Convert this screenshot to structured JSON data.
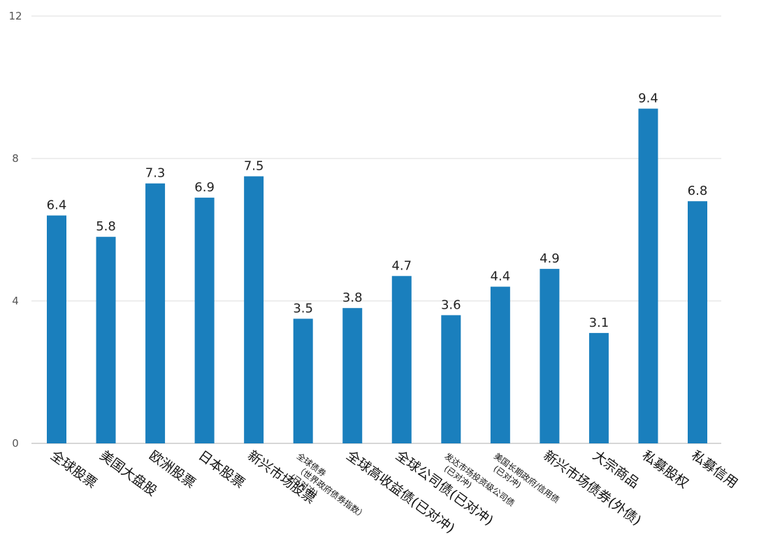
{
  "chart_data": {
    "type": "bar",
    "title": "",
    "xlabel": "",
    "ylabel": "",
    "ylim": [
      0,
      12
    ],
    "yticks": [
      0,
      4,
      8,
      12
    ],
    "grid": true,
    "bar_color": "#1a7fbd",
    "categories": [
      "全球股票",
      "美国大盘股",
      "欧洲股票",
      "日本股票",
      "新兴市场股票",
      "全球债券（世界政府债券指数）(已对冲)",
      "全球高收益债(已对冲)",
      "全球公司债(已对冲)",
      "发达市场投资级公司债(已对冲)",
      "美国长期政府/信用债(已对冲)",
      "新兴市场债券(外债)",
      "大宗商品",
      "私募股权",
      "私募信用"
    ],
    "values": [
      6.4,
      5.8,
      7.3,
      6.9,
      7.5,
      3.5,
      3.8,
      4.7,
      3.6,
      4.4,
      4.9,
      3.1,
      9.4,
      6.8
    ],
    "data_labels": [
      "6.4",
      "5.8",
      "7.3",
      "6.9",
      "7.5",
      "3.5",
      "3.8",
      "4.7",
      "3.6",
      "4.4",
      "4.9",
      "3.1",
      "9.4",
      "6.8"
    ]
  }
}
